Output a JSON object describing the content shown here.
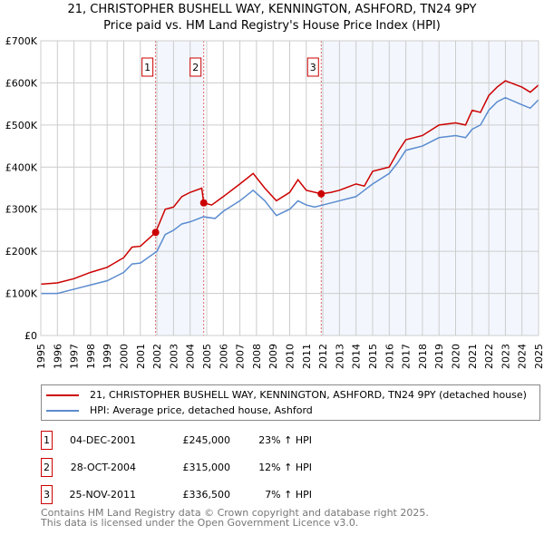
{
  "chart_data": {
    "type": "line",
    "title": "21, CHRISTOPHER BUSHELL WAY, KENNINGTON, ASHFORD, TN24 9PY",
    "subtitle": "Price paid vs. HM Land Registry's House Price Index (HPI)",
    "xlim": [
      1995,
      2025
    ],
    "ylim": [
      0,
      700000
    ],
    "x_ticks": [
      "1995",
      "1996",
      "1997",
      "1998",
      "1999",
      "2000",
      "2001",
      "2002",
      "2003",
      "2004",
      "2005",
      "2006",
      "2007",
      "2008",
      "2009",
      "2010",
      "2011",
      "2012",
      "2013",
      "2014",
      "2015",
      "2016",
      "2017",
      "2018",
      "2019",
      "2020",
      "2021",
      "2022",
      "2023",
      "2024",
      "2025"
    ],
    "y_ticks": [
      {
        "v": 0,
        "label": "£0"
      },
      {
        "v": 100000,
        "label": "£100K"
      },
      {
        "v": 200000,
        "label": "£200K"
      },
      {
        "v": 300000,
        "label": "£300K"
      },
      {
        "v": 400000,
        "label": "£400K"
      },
      {
        "v": 500000,
        "label": "£500K"
      },
      {
        "v": 600000,
        "label": "£600K"
      },
      {
        "v": 700000,
        "label": "£700K"
      }
    ],
    "grid": true,
    "series": [
      {
        "name": "21, CHRISTOPHER BUSHELL WAY, KENNINGTON, ASHFORD, TN24 9PY (detached house)",
        "color": "#cc0000",
        "x": [
          1995,
          1996,
          1997,
          1998,
          1999,
          2000,
          2000.5,
          2001,
          2001.92,
          2002.5,
          2003,
          2003.5,
          2004,
          2004.7,
          2004.82,
          2005.3,
          2006,
          2007,
          2007.8,
          2008.5,
          2009.2,
          2010,
          2010.5,
          2011,
          2011.9,
          2012.5,
          2013,
          2014,
          2014.5,
          2015,
          2016,
          2016.5,
          2017,
          2018,
          2019,
          2020,
          2020.6,
          2021,
          2021.5,
          2022,
          2022.5,
          2023,
          2024,
          2024.5,
          2025
        ],
        "y": [
          122000,
          125000,
          135000,
          150000,
          162000,
          185000,
          210000,
          212000,
          245000,
          300000,
          305000,
          330000,
          340000,
          350000,
          315000,
          310000,
          330000,
          360000,
          385000,
          350000,
          320000,
          340000,
          370000,
          345000,
          336500,
          340000,
          345000,
          360000,
          355000,
          390000,
          400000,
          435000,
          465000,
          475000,
          500000,
          505000,
          500000,
          535000,
          530000,
          570000,
          590000,
          605000,
          590000,
          578000,
          595000
        ]
      },
      {
        "name": "HPI: Average price, detached house, Ashford",
        "color": "#5b8ccf",
        "x": [
          1995,
          1996,
          1997,
          1998,
          1999,
          2000,
          2000.5,
          2001,
          2002,
          2002.5,
          2003,
          2003.5,
          2004,
          2004.8,
          2005.5,
          2006,
          2007,
          2007.8,
          2008.5,
          2009.2,
          2010,
          2010.5,
          2011,
          2011.5,
          2012,
          2013,
          2014,
          2014.5,
          2015,
          2016,
          2016.5,
          2017,
          2018,
          2019,
          2020,
          2020.6,
          2021,
          2021.5,
          2022,
          2022.5,
          2023,
          2024,
          2024.5,
          2025
        ],
        "y": [
          100000,
          100000,
          110000,
          120000,
          130000,
          150000,
          170000,
          172000,
          200000,
          240000,
          250000,
          265000,
          270000,
          282000,
          278000,
          295000,
          320000,
          345000,
          320000,
          285000,
          300000,
          320000,
          310000,
          305000,
          310000,
          320000,
          330000,
          345000,
          360000,
          385000,
          410000,
          440000,
          450000,
          470000,
          475000,
          470000,
          490000,
          500000,
          535000,
          555000,
          565000,
          548000,
          540000,
          560000
        ]
      }
    ],
    "shaded_ranges": [
      [
        2001.92,
        2004.82
      ],
      [
        2011.9,
        2025
      ]
    ],
    "annotations": [
      {
        "label": "1",
        "x": 2001.92,
        "y": 245000
      },
      {
        "label": "2",
        "x": 2004.82,
        "y": 315000
      },
      {
        "label": "3",
        "x": 2011.9,
        "y": 336500
      }
    ],
    "legend": "below"
  },
  "transactions": [
    {
      "num": "1",
      "date": "04-DEC-2001",
      "price": "£245,000",
      "hpi": "23% ↑ HPI"
    },
    {
      "num": "2",
      "date": "28-OCT-2004",
      "price": "£315,000",
      "hpi": "12% ↑ HPI"
    },
    {
      "num": "3",
      "date": "25-NOV-2011",
      "price": "£336,500",
      "hpi": "7% ↑ HPI"
    }
  ],
  "footer": {
    "line1": "Contains HM Land Registry data © Crown copyright and database right 2025.",
    "line2": "This data is licensed under the Open Government Licence v3.0."
  }
}
